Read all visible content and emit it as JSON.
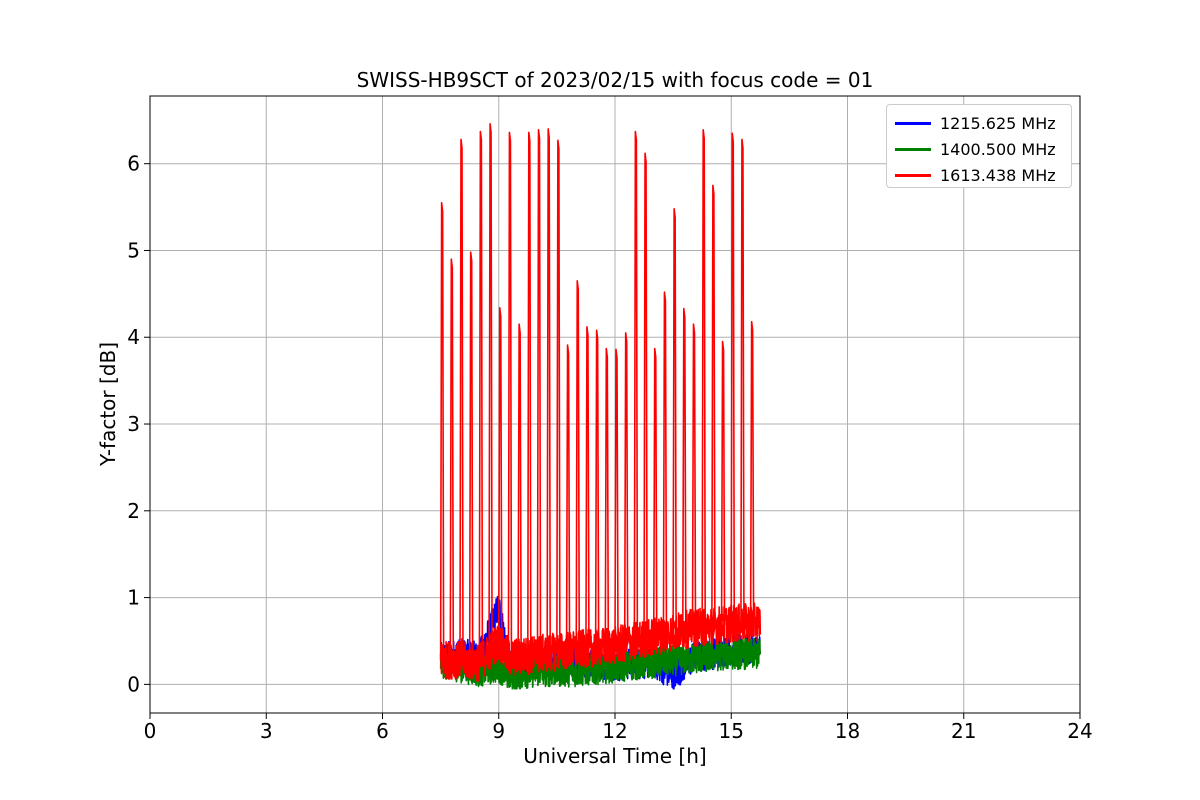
{
  "chart_data": {
    "type": "line",
    "title": "SWISS-HB9SCT of 2023/02/15 with focus code = 01",
    "xlabel": "Universal Time [h]",
    "ylabel": "Y-factor [dB]",
    "xlim": [
      0,
      24
    ],
    "ylim": [
      -0.33,
      6.78
    ],
    "x_ticks": [
      "0",
      "3",
      "6",
      "9",
      "12",
      "15",
      "18",
      "21",
      "24"
    ],
    "y_ticks": [
      "0",
      "1",
      "2",
      "3",
      "4",
      "5",
      "6"
    ],
    "grid": true,
    "legend_position": "top-right",
    "data_range_hours": [
      7.5,
      15.75
    ],
    "series": [
      {
        "name": "1215.625 MHz",
        "color": "#0000ff",
        "baseline": [
          [
            7.5,
            0.3
          ],
          [
            8.0,
            0.35
          ],
          [
            8.5,
            0.32
          ],
          [
            9.0,
            0.9
          ],
          [
            9.25,
            0.3
          ],
          [
            10.0,
            0.3
          ],
          [
            11.0,
            0.25
          ],
          [
            12.0,
            0.22
          ],
          [
            13.0,
            0.25
          ],
          [
            13.5,
            0.1
          ],
          [
            14.0,
            0.3
          ],
          [
            15.0,
            0.4
          ],
          [
            15.75,
            0.4
          ]
        ]
      },
      {
        "name": "1400.500 MHz",
        "color": "#008000",
        "baseline": [
          [
            7.5,
            0.25
          ],
          [
            8.0,
            0.2
          ],
          [
            8.5,
            0.15
          ],
          [
            9.0,
            0.2
          ],
          [
            9.25,
            0.1
          ],
          [
            10.0,
            0.15
          ],
          [
            11.0,
            0.15
          ],
          [
            12.0,
            0.2
          ],
          [
            13.0,
            0.25
          ],
          [
            14.0,
            0.3
          ],
          [
            15.0,
            0.35
          ],
          [
            15.75,
            0.35
          ]
        ]
      },
      {
        "name": "1613.438 MHz",
        "color": "#ff0000",
        "baseline": [
          [
            7.5,
            0.28
          ],
          [
            8.0,
            0.28
          ],
          [
            8.5,
            0.25
          ],
          [
            9.0,
            0.5
          ],
          [
            9.25,
            0.3
          ],
          [
            10.0,
            0.35
          ],
          [
            11.0,
            0.4
          ],
          [
            12.0,
            0.45
          ],
          [
            13.0,
            0.55
          ],
          [
            14.0,
            0.65
          ],
          [
            15.0,
            0.7
          ],
          [
            15.75,
            0.72
          ]
        ],
        "peaks": [
          [
            7.5,
            5.55
          ],
          [
            7.75,
            4.9
          ],
          [
            8.0,
            6.28
          ],
          [
            8.25,
            4.98
          ],
          [
            8.5,
            6.37
          ],
          [
            8.75,
            6.46
          ],
          [
            9.0,
            4.34
          ],
          [
            9.25,
            6.36
          ],
          [
            9.5,
            4.15
          ],
          [
            9.75,
            6.36
          ],
          [
            10.0,
            6.39
          ],
          [
            10.25,
            6.4
          ],
          [
            10.5,
            6.27
          ],
          [
            10.75,
            3.91
          ],
          [
            11.0,
            4.65
          ],
          [
            11.25,
            4.12
          ],
          [
            11.5,
            4.08
          ],
          [
            11.75,
            3.87
          ],
          [
            12.0,
            3.86
          ],
          [
            12.25,
            4.05
          ],
          [
            12.5,
            6.37
          ],
          [
            12.75,
            6.12
          ],
          [
            13.0,
            3.87
          ],
          [
            13.25,
            4.52
          ],
          [
            13.5,
            5.48
          ],
          [
            13.75,
            4.33
          ],
          [
            14.0,
            4.15
          ],
          [
            14.25,
            6.39
          ],
          [
            14.5,
            5.75
          ],
          [
            14.75,
            3.95
          ],
          [
            15.0,
            6.35
          ],
          [
            15.25,
            6.28
          ],
          [
            15.5,
            4.18
          ]
        ]
      }
    ]
  }
}
